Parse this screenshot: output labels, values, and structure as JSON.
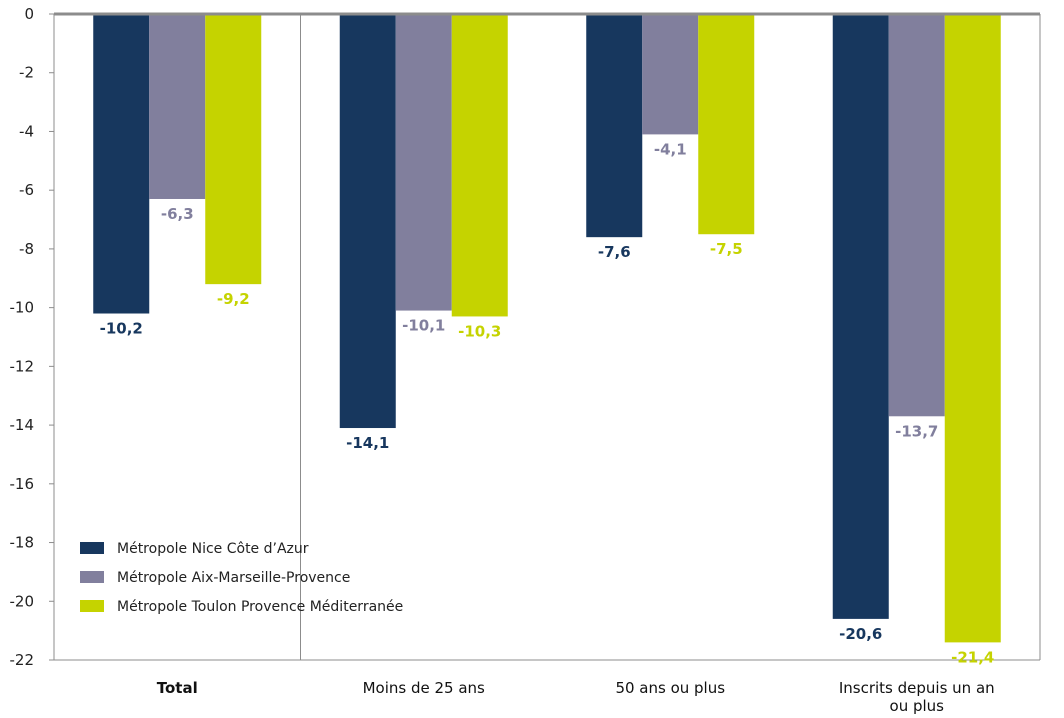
{
  "chart_data": {
    "type": "bar",
    "categories": [
      "Total",
      "Moins de 25 ans",
      "50 ans ou plus",
      "Inscrits depuis un an ou plus"
    ],
    "series": [
      {
        "name": "Métropole Nice Côte d’Azur",
        "color": "#17375e",
        "values": [
          -10.2,
          -14.1,
          -7.6,
          -20.6
        ],
        "labels": [
          "-10,2",
          "-14,1",
          "-7,6",
          "-20,6"
        ]
      },
      {
        "name": "Métropole Aix-Marseille-Provence",
        "color": "#817f9d",
        "values": [
          -6.3,
          -10.1,
          -4.1,
          -13.7
        ],
        "labels": [
          "-6,3",
          "-10,1",
          "-4,1",
          "-13,7"
        ]
      },
      {
        "name": "Métropole Toulon Provence Méditerranée",
        "color": "#c5d300",
        "values": [
          -9.2,
          -10.3,
          -7.5,
          -21.4
        ],
        "labels": [
          "-9,2",
          "-10,3",
          "-7,5",
          "-21,4"
        ]
      }
    ],
    "ylim": [
      -22,
      0
    ],
    "yticks": [
      0,
      -2,
      -4,
      -6,
      -8,
      -10,
      -12,
      -14,
      -16,
      -18,
      -20,
      -22
    ],
    "ytick_labels": [
      "0",
      "-2",
      "-4",
      "-6",
      "-8",
      "-10",
      "-12",
      "-14",
      "-16",
      "-18",
      "-20",
      "-22"
    ],
    "category_label_lines": [
      [
        "Total"
      ],
      [
        "Moins de 25 ans"
      ],
      [
        "50 ans ou plus"
      ],
      [
        "Inscrits depuis un an",
        "ou plus"
      ]
    ],
    "bold_category": "Total",
    "title": "",
    "xlabel": "",
    "ylabel": "",
    "grid": false,
    "legend_position": "bottom-left",
    "label_colors": [
      "#17375e",
      "#817f9d",
      "#c5d300"
    ]
  }
}
